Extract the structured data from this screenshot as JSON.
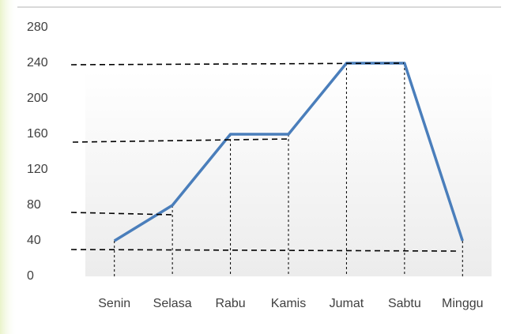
{
  "chart_data": {
    "type": "line",
    "categories": [
      "Senin",
      "Selasa",
      "Rabu",
      "Kamis",
      "Jumat",
      "Sabtu",
      "Minggu"
    ],
    "series": [
      {
        "color": "#4a7ebb",
        "values": [
          40,
          80,
          160,
          160,
          240,
          240,
          40
        ]
      }
    ],
    "ylim": [
      0,
      280
    ],
    "yticks": [
      0,
      40,
      80,
      120,
      160,
      200,
      240,
      280
    ]
  }
}
